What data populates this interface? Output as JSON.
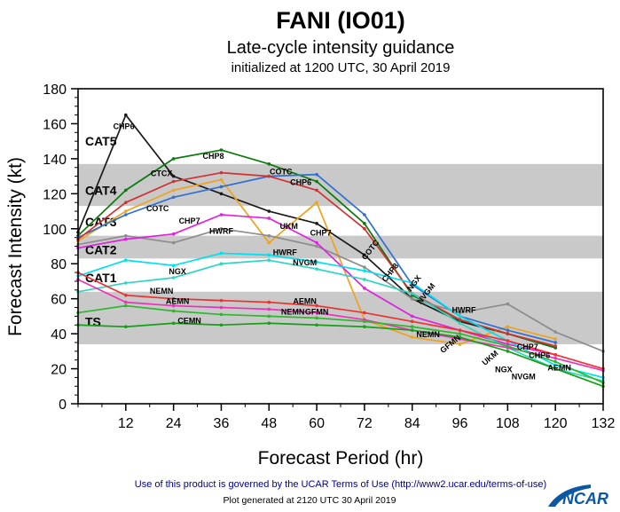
{
  "header": {
    "title": "FANI (IO01)",
    "subtitle": "Late-cycle intensity guidance",
    "init_line": "initialized at 1200 UTC, 30 April 2019"
  },
  "footer": {
    "terms": "Use of this product is governed by the UCAR Terms of Use (http://www2.ucar.edu/terms-of-use)",
    "generated": "Plot generated at 2120 UTC   30 April 2019",
    "logo": "NCAR"
  },
  "chart_data": {
    "type": "line",
    "title": "FANI (IO01) Late-cycle intensity guidance initialized at 1200 UTC, 30 April 2019",
    "xlabel": "Forecast Period (hr)",
    "ylabel": "Forecast Intensity (kt)",
    "xlim": [
      0,
      132
    ],
    "ylim": [
      0,
      180
    ],
    "x_ticks": [
      12,
      24,
      36,
      48,
      60,
      72,
      84,
      96,
      108,
      120,
      132
    ],
    "y_ticks": [
      0,
      20,
      40,
      60,
      80,
      100,
      120,
      140,
      160,
      180
    ],
    "grid": false,
    "legend": "inline-labels",
    "bands": [
      {
        "name": "TS",
        "from": 34,
        "to": 64,
        "color": "#c9c9c9"
      },
      {
        "name": "CAT2",
        "from": 83,
        "to": 96,
        "color": "#c9c9c9"
      },
      {
        "name": "CAT4",
        "from": 113,
        "to": 137,
        "color": "#c9c9c9"
      }
    ],
    "category_labels": [
      {
        "text": "CAT5",
        "kt": 150,
        "on_band": false
      },
      {
        "text": "CAT4",
        "kt": 122,
        "on_band": true
      },
      {
        "text": "CAT3",
        "kt": 104,
        "on_band": false
      },
      {
        "text": "CAT2",
        "kt": 88,
        "on_band": true
      },
      {
        "text": "CAT1",
        "kt": 72,
        "on_band": false
      },
      {
        "text": "TS",
        "kt": 47,
        "on_band": true
      }
    ],
    "hours": [
      0,
      12,
      24,
      36,
      48,
      60,
      72,
      84,
      96,
      108,
      120,
      132
    ],
    "series": [
      {
        "name": "CHP6",
        "color": "#1a1a1a",
        "values": [
          98,
          165,
          130,
          120,
          110,
          103,
          85,
          60,
          47,
          40,
          32,
          null
        ]
      },
      {
        "name": "CHP7",
        "color": "#f0a11d",
        "values": [
          93,
          110,
          122,
          128,
          92,
          115,
          48,
          38,
          34,
          44,
          37,
          null
        ]
      },
      {
        "name": "CHP8",
        "color": "#0a7a0a",
        "values": [
          96,
          122,
          140,
          145,
          137,
          127,
          103,
          62,
          48,
          40,
          32,
          null
        ]
      },
      {
        "name": "COTC",
        "color": "#2e6fd2",
        "values": [
          95,
          108,
          118,
          124,
          130,
          131,
          108,
          68,
          50,
          42,
          35,
          null
        ]
      },
      {
        "name": "CTCX",
        "color": "#d43030",
        "values": [
          94,
          115,
          127,
          132,
          130,
          122,
          100,
          63,
          48,
          40,
          33,
          null
        ]
      },
      {
        "name": "HWRF",
        "color": "#8c8c8c",
        "values": [
          91,
          96,
          92,
          100,
          96,
          90,
          78,
          60,
          52,
          57,
          41,
          30
        ]
      },
      {
        "name": "UKM",
        "color": "#e020e0",
        "values": [
          89,
          94,
          97,
          108,
          106,
          92,
          66,
          50,
          42,
          34,
          28,
          null
        ]
      },
      {
        "name": "NGX",
        "color": "#00dff0",
        "values": [
          73,
          82,
          79,
          86,
          85,
          81,
          76,
          69,
          50,
          36,
          22,
          15
        ]
      },
      {
        "name": "NVGM",
        "color": "#2fd5c0",
        "values": [
          64,
          69,
          72,
          80,
          82,
          77,
          71,
          63,
          46,
          32,
          20,
          13
        ]
      },
      {
        "name": "AEMN",
        "color": "#f03030",
        "values": [
          75,
          62,
          60,
          59,
          58,
          56,
          52,
          47,
          42,
          36,
          28,
          20
        ]
      },
      {
        "name": "NEMN",
        "color": "#f030b8",
        "values": [
          71,
          58,
          56,
          55,
          54,
          52,
          48,
          42,
          37,
          32,
          26,
          19
        ]
      },
      {
        "name": "GFMN",
        "color": "#2db82d",
        "values": [
          52,
          56,
          53,
          51,
          50,
          49,
          47,
          44,
          40,
          33,
          24,
          12
        ]
      },
      {
        "name": "CEMN",
        "color": "#15a015",
        "values": [
          45,
          44,
          46,
          45,
          46,
          45,
          44,
          42,
          38,
          30,
          20,
          10
        ]
      }
    ],
    "annotations": [
      {
        "text": "CHP6",
        "hr": 11.5,
        "kt": 157
      },
      {
        "text": "CTCX",
        "hr": 21,
        "kt": 130
      },
      {
        "text": "CHP8",
        "hr": 34,
        "kt": 140
      },
      {
        "text": "COTC",
        "hr": 51,
        "kt": 131
      },
      {
        "text": "CHP6",
        "hr": 56,
        "kt": 125
      },
      {
        "text": "COTC",
        "hr": 20,
        "kt": 110
      },
      {
        "text": "CHP7",
        "hr": 28,
        "kt": 103
      },
      {
        "text": "HWRF",
        "hr": 36,
        "kt": 97
      },
      {
        "text": "UKM",
        "hr": 53,
        "kt": 100
      },
      {
        "text": "CHP7",
        "hr": 61,
        "kt": 96
      },
      {
        "text": "HWRF",
        "hr": 52,
        "kt": 85
      },
      {
        "text": "NGX",
        "hr": 25,
        "kt": 74
      },
      {
        "text": "NVGM",
        "hr": 57,
        "kt": 79
      },
      {
        "text": "NEMN",
        "hr": 21,
        "kt": 63
      },
      {
        "text": "AEMN",
        "hr": 25,
        "kt": 57
      },
      {
        "text": "AEMN",
        "hr": 57,
        "kt": 57
      },
      {
        "text": "NEMN",
        "hr": 54,
        "kt": 51
      },
      {
        "text": "GFMN",
        "hr": 60,
        "kt": 51
      },
      {
        "text": "CEMN",
        "hr": 28,
        "kt": 46
      },
      {
        "text": "COTC",
        "hr": 74,
        "kt": 87,
        "rot": -52
      },
      {
        "text": "CHP8",
        "hr": 79,
        "kt": 74,
        "rot": -52
      },
      {
        "text": "NGX",
        "hr": 85,
        "kt": 68,
        "rot": -52
      },
      {
        "text": "NVGM",
        "hr": 88,
        "kt": 62,
        "rot": -52
      },
      {
        "text": "HWRF",
        "hr": 97,
        "kt": 52
      },
      {
        "text": "NEMN",
        "hr": 88,
        "kt": 38
      },
      {
        "text": "GFMN",
        "hr": 94,
        "kt": 33,
        "rot": -40
      },
      {
        "text": "UKM",
        "hr": 104,
        "kt": 25,
        "rot": -40
      },
      {
        "text": "CHP7",
        "hr": 113,
        "kt": 31
      },
      {
        "text": "CHP6",
        "hr": 116,
        "kt": 26
      },
      {
        "text": "NGX",
        "hr": 107,
        "kt": 18
      },
      {
        "text": "NVGM",
        "hr": 112,
        "kt": 14
      },
      {
        "text": "AEMN",
        "hr": 121,
        "kt": 19
      }
    ]
  }
}
